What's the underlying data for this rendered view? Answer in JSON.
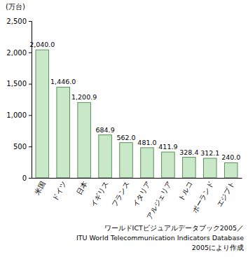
{
  "chart_data": {
    "type": "bar",
    "y_label": "(万台)",
    "categories": [
      "米国",
      "ドイツ",
      "日本",
      "イギリス",
      "フランス",
      "イタリア",
      "アルジェリア",
      "トルコ",
      "ポーランド",
      "エジプト"
    ],
    "values": [
      2040.0,
      1446.0,
      1200.9,
      684.9,
      562.0,
      481.0,
      411.9,
      328.4,
      312.1,
      240.0
    ],
    "value_labels": [
      "2,040.0",
      "1,446.0",
      "1,200.9",
      "684.9",
      "562.0",
      "481.0",
      "411.9",
      "328.4",
      "312.1",
      "240.0"
    ],
    "data_labels": true,
    "color": "#c8e8c8",
    "ylim": [
      0,
      2500
    ],
    "yticks": [
      0,
      500,
      {
        "value": 1000,
        "label": "1,000"
      },
      {
        "value": 1500,
        "label": "1,500"
      },
      {
        "value": 2000,
        "label": "2,000"
      },
      {
        "value": 2500,
        "label": "2,500"
      }
    ],
    "grid": false,
    "annotations": [
      "ワールドICTビジュアルデータブック2005／",
      "ITU World Telecommunication Indicators Database",
      "2005により作成"
    ]
  }
}
